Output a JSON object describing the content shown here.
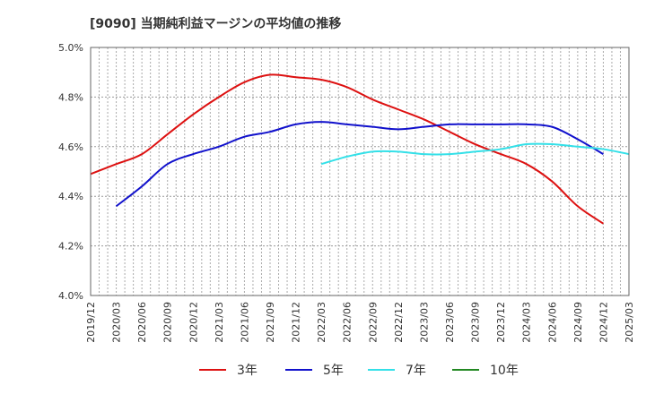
{
  "chart_data": {
    "type": "line",
    "title": "[9090]  当期純利益マージンの平均値の推移",
    "xlabel": "",
    "ylabel": "",
    "ylim": [
      4.0,
      5.0
    ],
    "yticks": [
      "4.0%",
      "4.2%",
      "4.4%",
      "4.6%",
      "4.8%",
      "5.0%"
    ],
    "x_ticks": [
      "2019/12",
      "2020/03",
      "2020/06",
      "2020/09",
      "2020/12",
      "2021/03",
      "2021/06",
      "2021/09",
      "2021/12",
      "2022/03",
      "2022/06",
      "2022/09",
      "2022/12",
      "2023/03",
      "2023/06",
      "2023/09",
      "2023/12",
      "2024/03",
      "2024/06",
      "2024/09",
      "2024/12",
      "2025/03"
    ],
    "grid": true,
    "legend_position": "bottom",
    "series": [
      {
        "name": "3年",
        "color": "#dd1111",
        "start_index": 0,
        "values": [
          4.49,
          4.53,
          4.57,
          4.65,
          4.73,
          4.8,
          4.86,
          4.89,
          4.88,
          4.87,
          4.84,
          4.79,
          4.75,
          4.71,
          4.66,
          4.61,
          4.57,
          4.53,
          4.46,
          4.36,
          4.29
        ]
      },
      {
        "name": "5年",
        "color": "#1111cc",
        "start_index": 1,
        "values": [
          4.36,
          4.44,
          4.53,
          4.57,
          4.6,
          4.64,
          4.66,
          4.69,
          4.7,
          4.69,
          4.68,
          4.67,
          4.68,
          4.69,
          4.69,
          4.69,
          4.69,
          4.68,
          4.63,
          4.57
        ]
      },
      {
        "name": "7年",
        "color": "#33e0e8",
        "start_index": 9,
        "values": [
          4.53,
          4.56,
          4.58,
          4.58,
          4.57,
          4.57,
          4.58,
          4.59,
          4.61,
          4.61,
          4.6,
          4.59,
          4.57
        ]
      },
      {
        "name": "10年",
        "color": "#228822",
        "start_index": 0,
        "values": []
      }
    ]
  }
}
